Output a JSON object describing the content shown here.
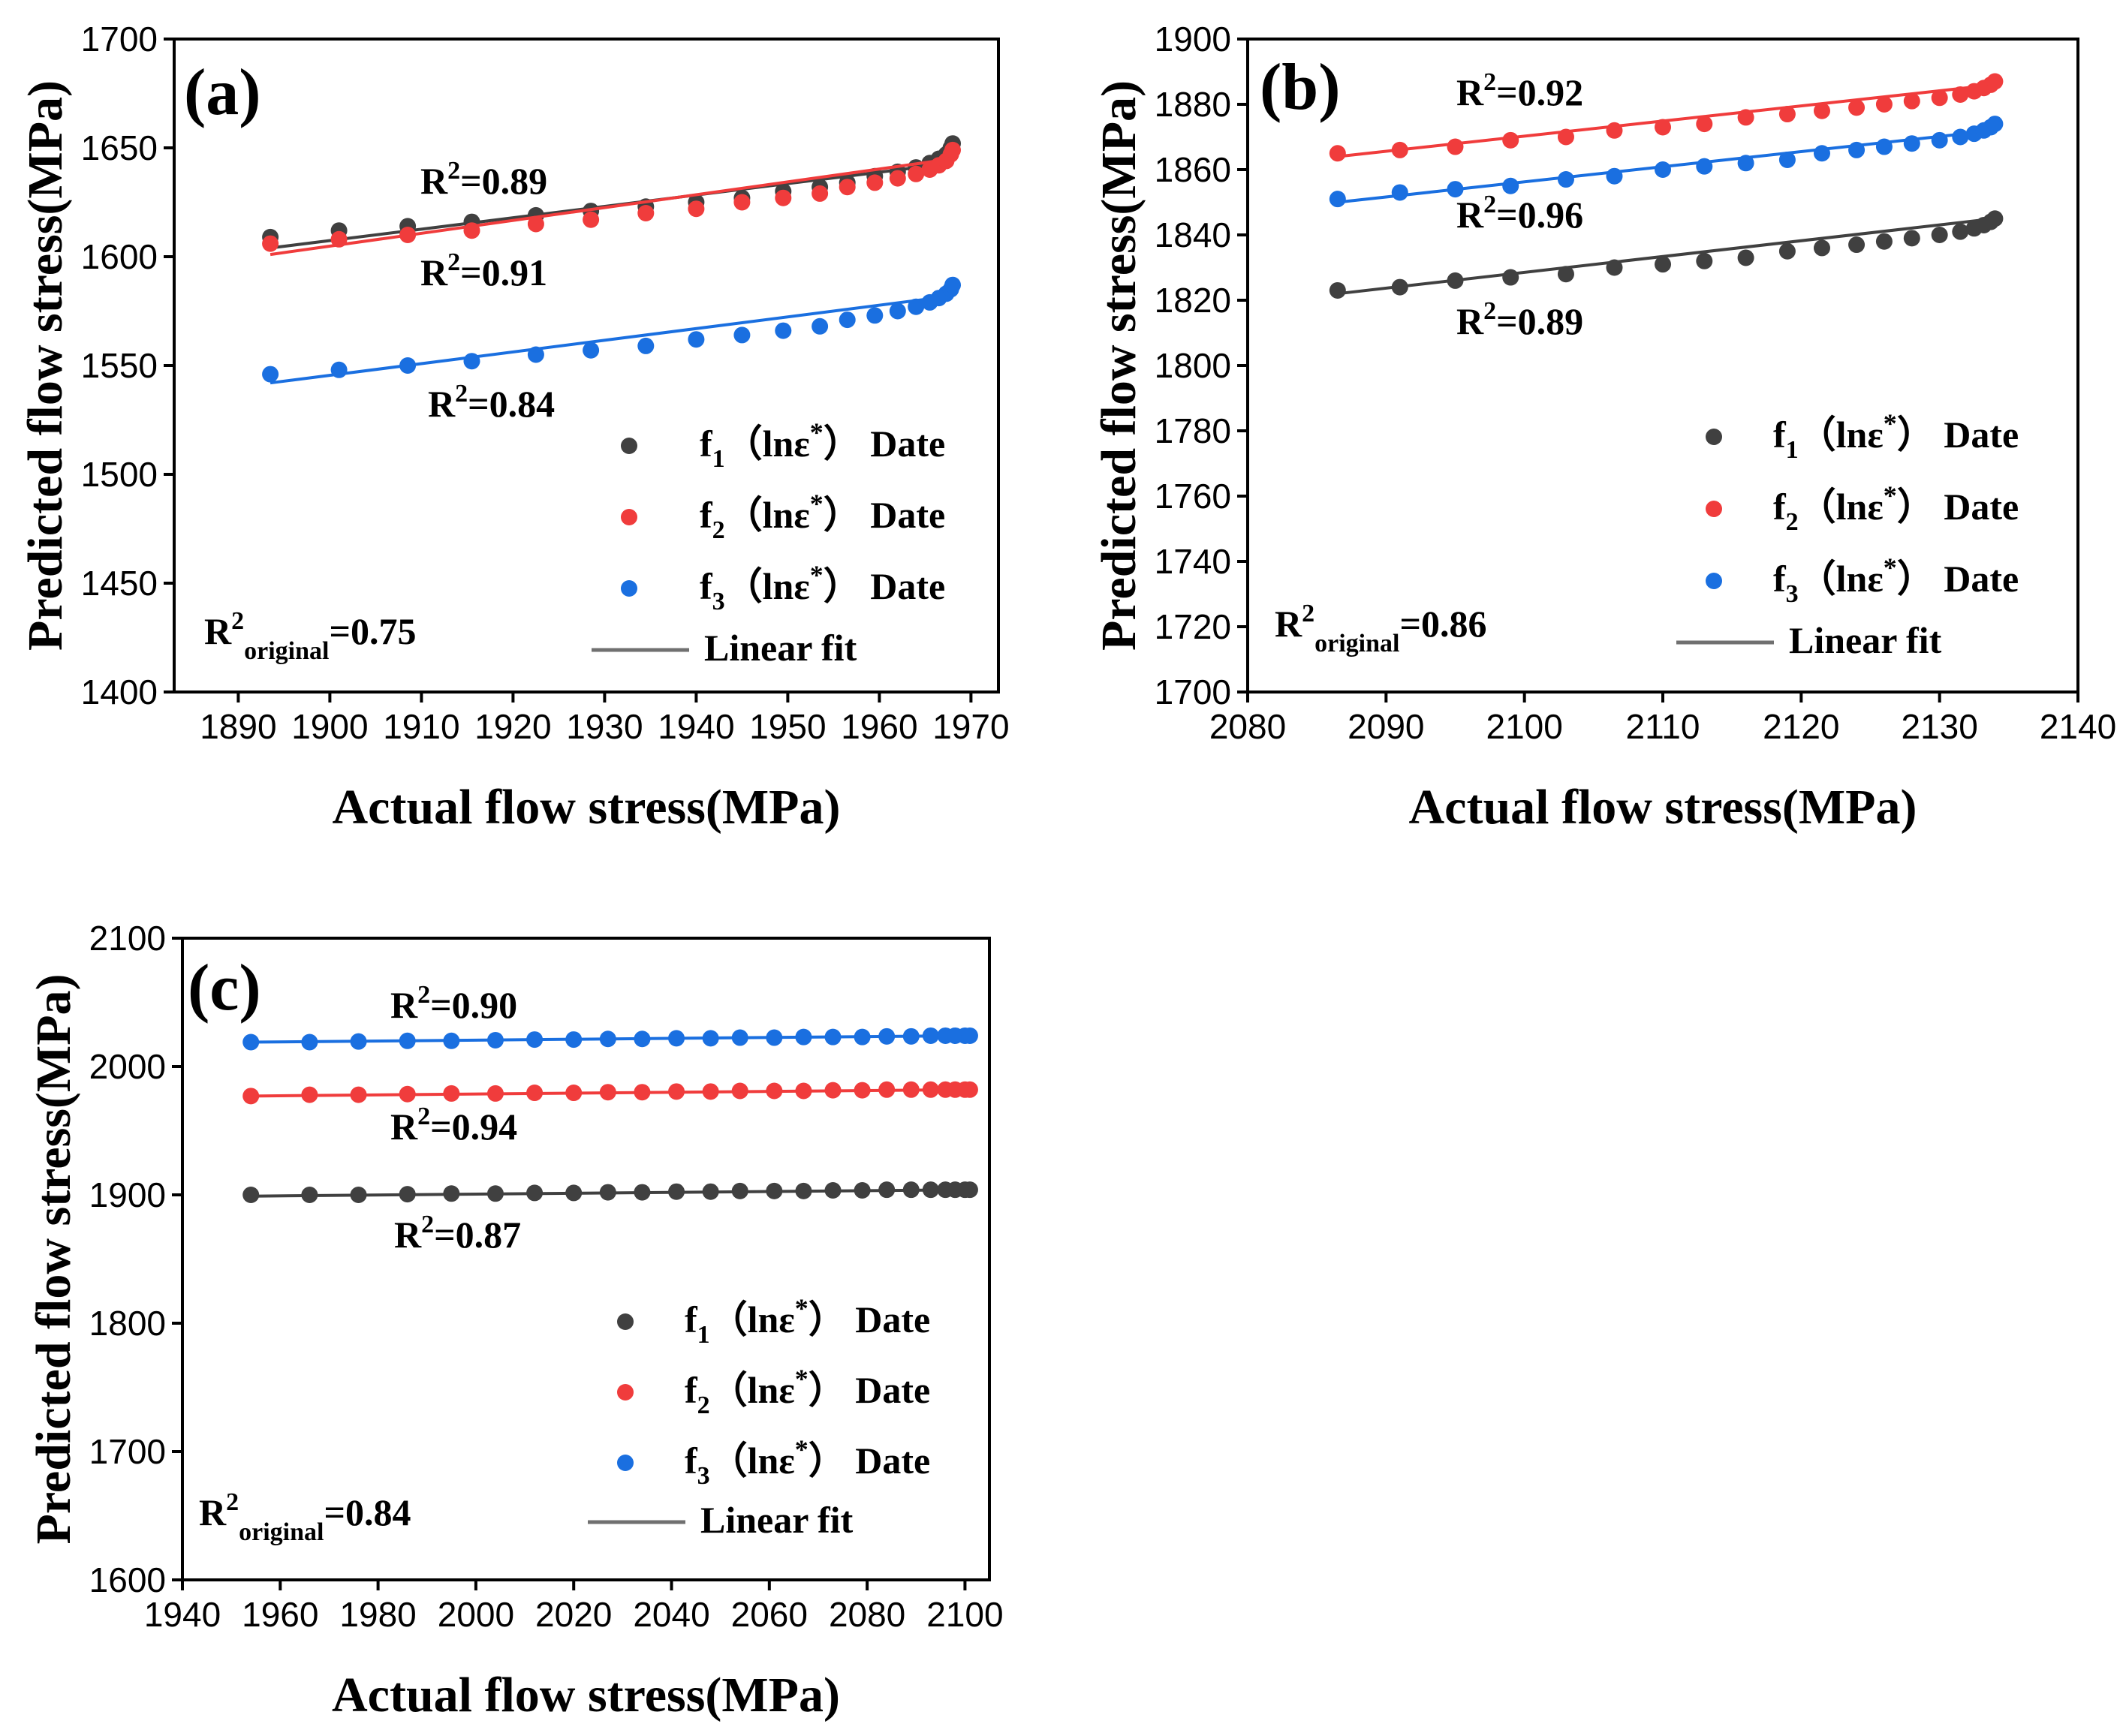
{
  "figure": {
    "legend_entries": [
      {
        "prefix": "f",
        "sub": "1",
        "mid": "（lnε",
        "sup": "*",
        "suffix": "）  Date",
        "color": "#404040"
      },
      {
        "prefix": "f",
        "sub": "2",
        "mid": "（lnε",
        "sup": "*",
        "suffix": "）  Date",
        "color": "#f03c3c"
      },
      {
        "prefix": "f",
        "sub": "3",
        "mid": "（lnε",
        "sup": "*",
        "suffix": "）  Date",
        "color": "#1a6fe0"
      }
    ],
    "linear_fit_label": "Linear fit",
    "linear_fit_color": "#707070"
  },
  "chart_data": [
    {
      "panel": "(a)",
      "type": "scatter",
      "xlabel": "Actual flow stress(MPa)",
      "ylabel": "Predicted flow stress(MPa)",
      "xlim": [
        1883,
        1973
      ],
      "ylim": [
        1400,
        1700
      ],
      "xticks": [
        1890,
        1900,
        1910,
        1920,
        1930,
        1940,
        1950,
        1960,
        1970
      ],
      "yticks": [
        1400,
        1450,
        1500,
        1550,
        1600,
        1650,
        1700
      ],
      "r2_original": "0.75",
      "x": [
        1893.5,
        1901,
        1908.5,
        1915.5,
        1922.5,
        1928.5,
        1934.5,
        1940,
        1945,
        1949.5,
        1953.5,
        1956.5,
        1959.5,
        1962,
        1964,
        1965.5,
        1966.5,
        1967.3,
        1967.8,
        1968
      ],
      "series": [
        {
          "name": "f1 Date",
          "color": "#404040",
          "r2": "0.89",
          "values": [
            1609,
            1612,
            1614,
            1616,
            1619,
            1621,
            1623,
            1625,
            1627,
            1630,
            1632,
            1634,
            1637,
            1639,
            1641,
            1643,
            1645,
            1647,
            1650,
            1652
          ],
          "fit": [
            1604,
            1643
          ]
        },
        {
          "name": "f2 Date",
          "color": "#f03c3c",
          "r2": "0.91",
          "values": [
            1606,
            1608,
            1610,
            1612,
            1615,
            1617,
            1620,
            1622,
            1625,
            1627,
            1629,
            1632,
            1634,
            1636,
            1638,
            1640,
            1642,
            1644,
            1647,
            1649
          ],
          "fit": [
            1601,
            1645
          ]
        },
        {
          "name": "f3 Date",
          "color": "#1a6fe0",
          "r2": "0.84",
          "values": [
            1546,
            1548,
            1550,
            1552,
            1555,
            1557,
            1559,
            1562,
            1564,
            1566,
            1568,
            1571,
            1573,
            1575,
            1577,
            1579,
            1581,
            1583,
            1585,
            1587
          ],
          "fit": [
            1542,
            1582
          ]
        }
      ]
    },
    {
      "panel": "(b)",
      "type": "scatter",
      "xlabel": "Actual flow stress(MPa)",
      "ylabel": "Predicted flow stress(MPa)",
      "xlim": [
        2080,
        2140
      ],
      "ylim": [
        1700,
        1900
      ],
      "xticks": [
        2080,
        2090,
        2100,
        2110,
        2120,
        2130,
        2140
      ],
      "yticks": [
        1700,
        1720,
        1740,
        1760,
        1780,
        1800,
        1820,
        1840,
        1860,
        1880,
        1900
      ],
      "r2_original": "0.86",
      "x": [
        2086.5,
        2091,
        2095,
        2099,
        2103,
        2106.5,
        2110,
        2113,
        2116,
        2119,
        2121.5,
        2124,
        2126,
        2128,
        2130,
        2131.5,
        2132.5,
        2133.2,
        2133.7,
        2134
      ],
      "series": [
        {
          "name": "f1 Date",
          "color": "#404040",
          "r2": "0.89",
          "values": [
            1823,
            1824,
            1826,
            1827,
            1828,
            1830,
            1831,
            1832,
            1833,
            1835,
            1836,
            1837,
            1838,
            1839,
            1840,
            1841,
            1842,
            1843,
            1844,
            1845
          ],
          "fit": [
            1822,
            1845
          ]
        },
        {
          "name": "f2 Date",
          "color": "#f03c3c",
          "r2": "0.92",
          "values": [
            1865,
            1866,
            1867,
            1869,
            1870,
            1872,
            1873,
            1874,
            1876,
            1877,
            1878,
            1879,
            1880,
            1881,
            1882,
            1883,
            1884,
            1885,
            1886,
            1887
          ],
          "fit": [
            1864,
            1886
          ]
        },
        {
          "name": "f3 Date",
          "color": "#1a6fe0",
          "r2": "0.96",
          "values": [
            1851,
            1853,
            1854,
            1855,
            1857,
            1858,
            1860,
            1861,
            1862,
            1863,
            1865,
            1866,
            1867,
            1868,
            1869,
            1870,
            1871,
            1872,
            1873,
            1874
          ],
          "fit": [
            1850,
            1872
          ]
        }
      ]
    },
    {
      "panel": "(c)",
      "type": "scatter",
      "xlabel": "Actual flow stress(MPa)",
      "ylabel": "Predicted flow stress(MPa)",
      "xlim": [
        1940,
        2105
      ],
      "ylim": [
        1600,
        2100
      ],
      "xticks": [
        1940,
        1960,
        1980,
        2000,
        2020,
        2040,
        2060,
        2080,
        2100
      ],
      "yticks": [
        1600,
        1700,
        1800,
        1900,
        2000,
        2100
      ],
      "r2_original": "0.84",
      "x": [
        1954,
        1966,
        1976,
        1986,
        1995,
        2004,
        2012,
        2020,
        2027,
        2034,
        2041,
        2048,
        2054,
        2061,
        2067,
        2073,
        2079,
        2084,
        2089,
        2093,
        2096,
        2098,
        2100,
        2101
      ],
      "series": [
        {
          "name": "f1 Date",
          "color": "#404040",
          "r2": "0.87",
          "values": [
            1900,
            1900,
            1900,
            1900.5,
            1901,
            1901,
            1901.5,
            1901.5,
            1902,
            1902,
            1902.5,
            1902.5,
            1903,
            1903,
            1903,
            1903.5,
            1903.5,
            1904,
            1904,
            1904,
            1904,
            1904,
            1904,
            1904
          ],
          "fit": [
            1899,
            1904
          ]
        },
        {
          "name": "f2 Date",
          "color": "#f03c3c",
          "r2": "0.94",
          "values": [
            1977,
            1978,
            1978,
            1978.5,
            1979,
            1979,
            1979.5,
            1979.5,
            1980,
            1980,
            1980.5,
            1980.5,
            1981,
            1981,
            1981,
            1981.5,
            1981.5,
            1982,
            1982,
            1982,
            1982,
            1982,
            1982,
            1982
          ],
          "fit": [
            1977,
            1982
          ]
        },
        {
          "name": "f3 Date",
          "color": "#1a6fe0",
          "r2": "0.90",
          "values": [
            2019,
            2019,
            2019.5,
            2020,
            2020,
            2020.5,
            2021,
            2021,
            2021.5,
            2021.5,
            2022,
            2022,
            2022.5,
            2022.5,
            2023,
            2023,
            2023,
            2023.5,
            2023.5,
            2024,
            2024,
            2024,
            2024,
            2024
          ],
          "fit": [
            2019,
            2024
          ]
        }
      ]
    }
  ]
}
